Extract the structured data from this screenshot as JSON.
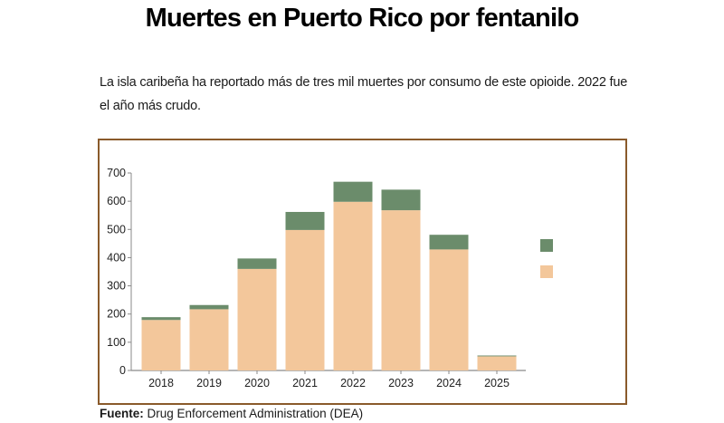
{
  "header": {
    "title": "Muertes en Puerto Rico por fentanilo",
    "subtitle": "La isla caribeña ha reportado más de tres mil muertes por consumo de este opioide. 2022 fue el año más crudo."
  },
  "footer": {
    "source_label": "Fuente:",
    "source_text": "Drug Enforcement Administration (DEA)"
  },
  "colors": {
    "frame": "#8a5a2b",
    "series_bottom": "#f3c79b",
    "series_top": "#6b8c6b",
    "axis": "#8a8a8a"
  },
  "chart_data": {
    "type": "bar",
    "stacked": true,
    "title": "Muertes en Puerto Rico por fentanilo",
    "xlabel": "",
    "ylabel": "",
    "categories": [
      "2018",
      "2019",
      "2020",
      "2021",
      "2022",
      "2023",
      "2024",
      "2025"
    ],
    "series": [
      {
        "name": "",
        "color": "#f3c79b",
        "values": [
          179,
          217,
          360,
          498,
          598,
          568,
          429,
          50
        ]
      },
      {
        "name": "",
        "color": "#6b8c6b",
        "values": [
          10,
          15,
          37,
          64,
          71,
          73,
          52,
          3
        ]
      }
    ],
    "ylim": [
      0,
      700
    ],
    "yticks": [
      0,
      100,
      200,
      300,
      400,
      500,
      600,
      700
    ],
    "grid": false,
    "legend": {
      "position": "right",
      "labels_visible": false
    }
  }
}
